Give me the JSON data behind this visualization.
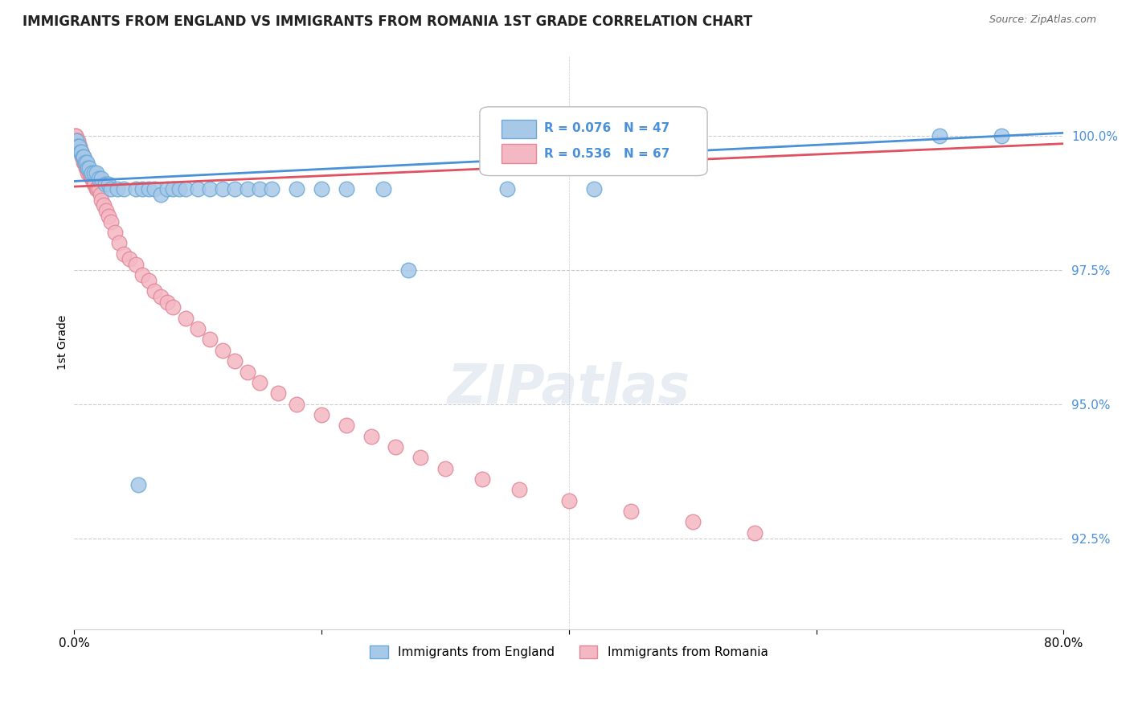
{
  "title": "IMMIGRANTS FROM ENGLAND VS IMMIGRANTS FROM ROMANIA 1ST GRADE CORRELATION CHART",
  "source": "Source: ZipAtlas.com",
  "ylabel": "1st Grade",
  "ytick_values": [
    92.5,
    95.0,
    97.5,
    100.0
  ],
  "xmin": 0.0,
  "xmax": 80.0,
  "ymin": 90.8,
  "ymax": 101.5,
  "legend_england": "Immigrants from England",
  "legend_romania": "Immigrants from Romania",
  "R_england": 0.076,
  "N_england": 47,
  "R_romania": 0.536,
  "N_romania": 67,
  "england_color": "#a8c8e8",
  "england_edge": "#6aaad8",
  "romania_color": "#f4b8c4",
  "romania_edge": "#e08898",
  "trendline_england_color": "#4a90d9",
  "trendline_romania_color": "#e05060",
  "england_trendline": [
    [
      0.0,
      99.15
    ],
    [
      80.0,
      100.05
    ]
  ],
  "romania_trendline": [
    [
      0.0,
      99.05
    ],
    [
      80.0,
      99.85
    ]
  ],
  "england_x": [
    0.2,
    0.3,
    0.4,
    0.5,
    0.6,
    0.7,
    0.8,
    0.9,
    1.0,
    1.1,
    1.2,
    1.4,
    1.6,
    1.8,
    2.0,
    2.2,
    2.5,
    2.8,
    3.0,
    3.5,
    4.0,
    5.0,
    5.5,
    6.0,
    6.5,
    7.0,
    7.5,
    8.0,
    8.5,
    9.0,
    10.0,
    11.0,
    12.0,
    13.0,
    14.0,
    15.0,
    16.0,
    18.0,
    20.0,
    22.0,
    25.0,
    27.0,
    35.0,
    42.0,
    5.2,
    70.0,
    75.0
  ],
  "england_y": [
    99.9,
    99.8,
    99.8,
    99.7,
    99.7,
    99.6,
    99.6,
    99.5,
    99.5,
    99.4,
    99.4,
    99.3,
    99.3,
    99.3,
    99.2,
    99.2,
    99.1,
    99.1,
    99.0,
    99.0,
    99.0,
    99.0,
    99.0,
    99.0,
    99.0,
    98.9,
    99.0,
    99.0,
    99.0,
    99.0,
    99.0,
    99.0,
    99.0,
    99.0,
    99.0,
    99.0,
    99.0,
    99.0,
    99.0,
    99.0,
    99.0,
    97.5,
    99.0,
    99.0,
    93.5,
    100.0,
    100.0
  ],
  "romania_x": [
    0.1,
    0.15,
    0.2,
    0.25,
    0.3,
    0.35,
    0.4,
    0.45,
    0.5,
    0.55,
    0.6,
    0.65,
    0.7,
    0.75,
    0.8,
    0.85,
    0.9,
    0.95,
    1.0,
    1.1,
    1.2,
    1.3,
    1.4,
    1.5,
    1.6,
    1.7,
    1.8,
    1.9,
    2.0,
    2.1,
    2.2,
    2.4,
    2.6,
    2.8,
    3.0,
    3.3,
    3.6,
    4.0,
    4.5,
    5.0,
    5.5,
    6.0,
    6.5,
    7.0,
    7.5,
    8.0,
    9.0,
    10.0,
    11.0,
    12.0,
    13.0,
    14.0,
    15.0,
    16.5,
    18.0,
    20.0,
    22.0,
    24.0,
    26.0,
    28.0,
    30.0,
    33.0,
    36.0,
    40.0,
    45.0,
    50.0,
    55.0
  ],
  "romania_y": [
    100.0,
    100.0,
    99.9,
    99.9,
    99.9,
    99.8,
    99.8,
    99.8,
    99.7,
    99.7,
    99.7,
    99.6,
    99.6,
    99.6,
    99.5,
    99.5,
    99.5,
    99.4,
    99.4,
    99.3,
    99.3,
    99.3,
    99.2,
    99.2,
    99.1,
    99.1,
    99.0,
    99.0,
    99.0,
    98.9,
    98.8,
    98.7,
    98.6,
    98.5,
    98.4,
    98.2,
    98.0,
    97.8,
    97.7,
    97.6,
    97.4,
    97.3,
    97.1,
    97.0,
    96.9,
    96.8,
    96.6,
    96.4,
    96.2,
    96.0,
    95.8,
    95.6,
    95.4,
    95.2,
    95.0,
    94.8,
    94.6,
    94.4,
    94.2,
    94.0,
    93.8,
    93.6,
    93.4,
    93.2,
    93.0,
    92.8,
    92.6
  ]
}
